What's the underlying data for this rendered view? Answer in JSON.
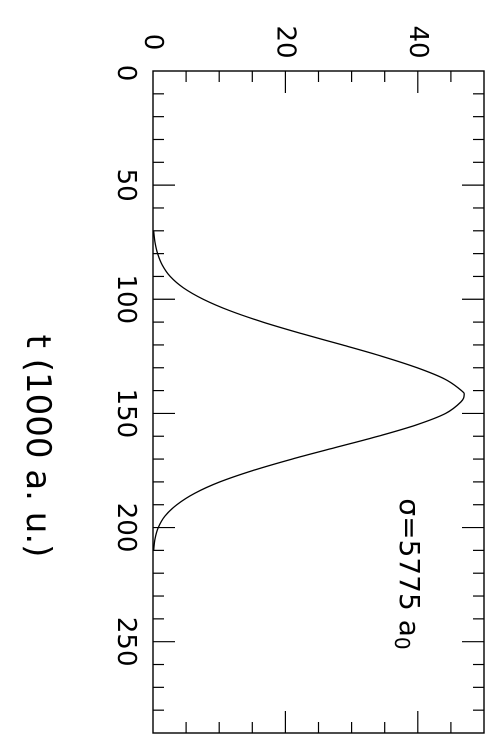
{
  "chart_data": {
    "type": "line",
    "title": "",
    "xlabel": "t (1000 a. u.)",
    "ylabel": "",
    "xlim": [
      0,
      290
    ],
    "ylim": [
      0,
      50
    ],
    "x_ticks": [
      "0",
      "50",
      "100",
      "150",
      "200",
      "250"
    ],
    "y_ticks": [
      "0",
      "20",
      "40"
    ],
    "annotation": "σ=5775 a",
    "annotation_subscript": "0",
    "orientation": "rotated 90° clockwise (x axis runs top to bottom)",
    "grid": false,
    "legend": "none",
    "colors": {
      "line": "#000000",
      "axes": "#000000",
      "background": "#ffffff"
    },
    "series": [
      {
        "x": [
          70,
          75,
          80,
          85,
          90,
          95,
          100,
          105,
          110,
          115,
          120,
          125,
          130,
          135,
          140,
          142,
          145,
          150,
          155,
          160,
          165,
          170,
          175,
          180,
          185,
          190,
          195,
          200,
          205,
          210
        ],
        "y": [
          0.1,
          0.3,
          0.7,
          1.4,
          2.6,
          4.6,
          7.6,
          11.6,
          16.6,
          22.4,
          28.6,
          34.6,
          39.9,
          44.1,
          46.6,
          47.0,
          46.5,
          44.2,
          39.8,
          34.0,
          27.5,
          21.0,
          15.1,
          10.1,
          6.3,
          3.6,
          1.8,
          0.8,
          0.3,
          0.1
        ]
      }
    ]
  }
}
